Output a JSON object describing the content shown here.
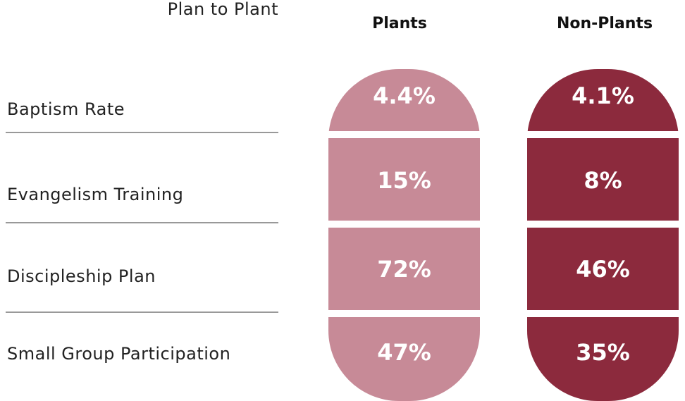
{
  "title": "Plan to Plant",
  "table": {
    "columns": [
      "Plants",
      "Non-Plants"
    ],
    "rows": [
      {
        "label": "Baptism Rate",
        "values": [
          "4.4%",
          "4.1%"
        ]
      },
      {
        "label": "Evangelism Training",
        "values": [
          "15%",
          "8%"
        ]
      },
      {
        "label": "Discipleship Plan",
        "values": [
          "72%",
          "46%"
        ]
      },
      {
        "label": "Small Group Participation",
        "values": [
          "47%",
          "35%"
        ]
      }
    ]
  }
}
